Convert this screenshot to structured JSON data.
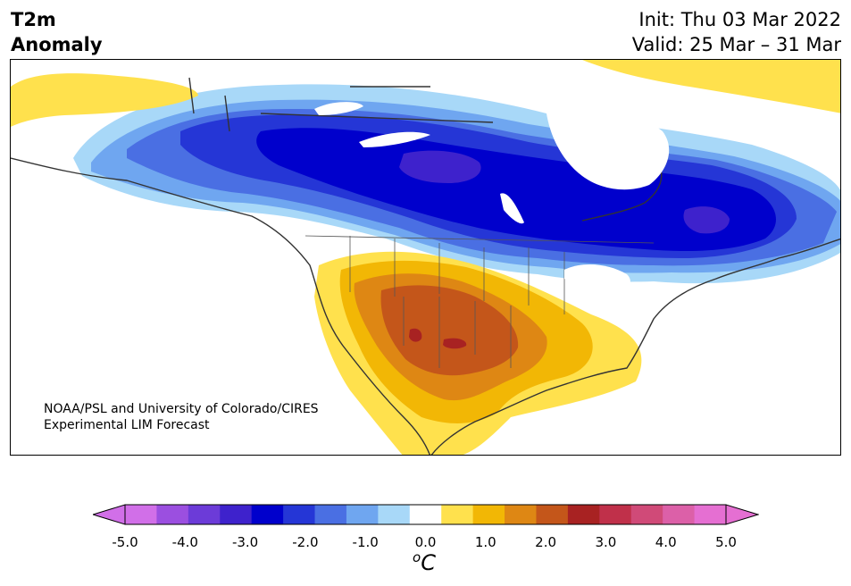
{
  "title": {
    "left_line1": "T2m",
    "left_line2": "Anomaly",
    "init": "Init: Thu 03 Mar 2022",
    "valid": "Valid: 25 Mar – 31 Mar"
  },
  "credit": {
    "line1": "NOAA/PSL and University of Colorado/CIRES",
    "line2": "Experimental LIM Forecast"
  },
  "colorbar": {
    "unit_superscript": "o",
    "unit_main": "C",
    "ticks": [
      "-5.0",
      "-4.0",
      "-3.0",
      "-2.0",
      "-1.0",
      "0.0",
      "1.0",
      "2.0",
      "3.0",
      "4.0",
      "5.0"
    ],
    "levels": [
      -5.0,
      -4.5,
      -4.0,
      -3.5,
      -3.0,
      -2.5,
      -2.0,
      -1.5,
      -1.0,
      -0.5,
      0.5,
      1.0,
      1.5,
      2.0,
      2.5,
      3.0,
      3.5,
      4.0,
      4.5,
      5.0
    ],
    "colors": [
      "#d16fe8",
      "#9b4fe0",
      "#6c3bd8",
      "#3e22cc",
      "#0000cc",
      "#2536d6",
      "#4a6fe3",
      "#6fa6f0",
      "#a8d8f8",
      "#ffffff",
      "#ffe14d",
      "#f2b705",
      "#de8714",
      "#c4561a",
      "#a82222",
      "#c0304a",
      "#d04a78",
      "#dc60a8",
      "#e56fd2"
    ],
    "under_color": "#d16fe8",
    "over_color": "#e56fd2"
  },
  "map": {
    "region": "North America",
    "field": "2m temperature anomaly (°C)"
  }
}
